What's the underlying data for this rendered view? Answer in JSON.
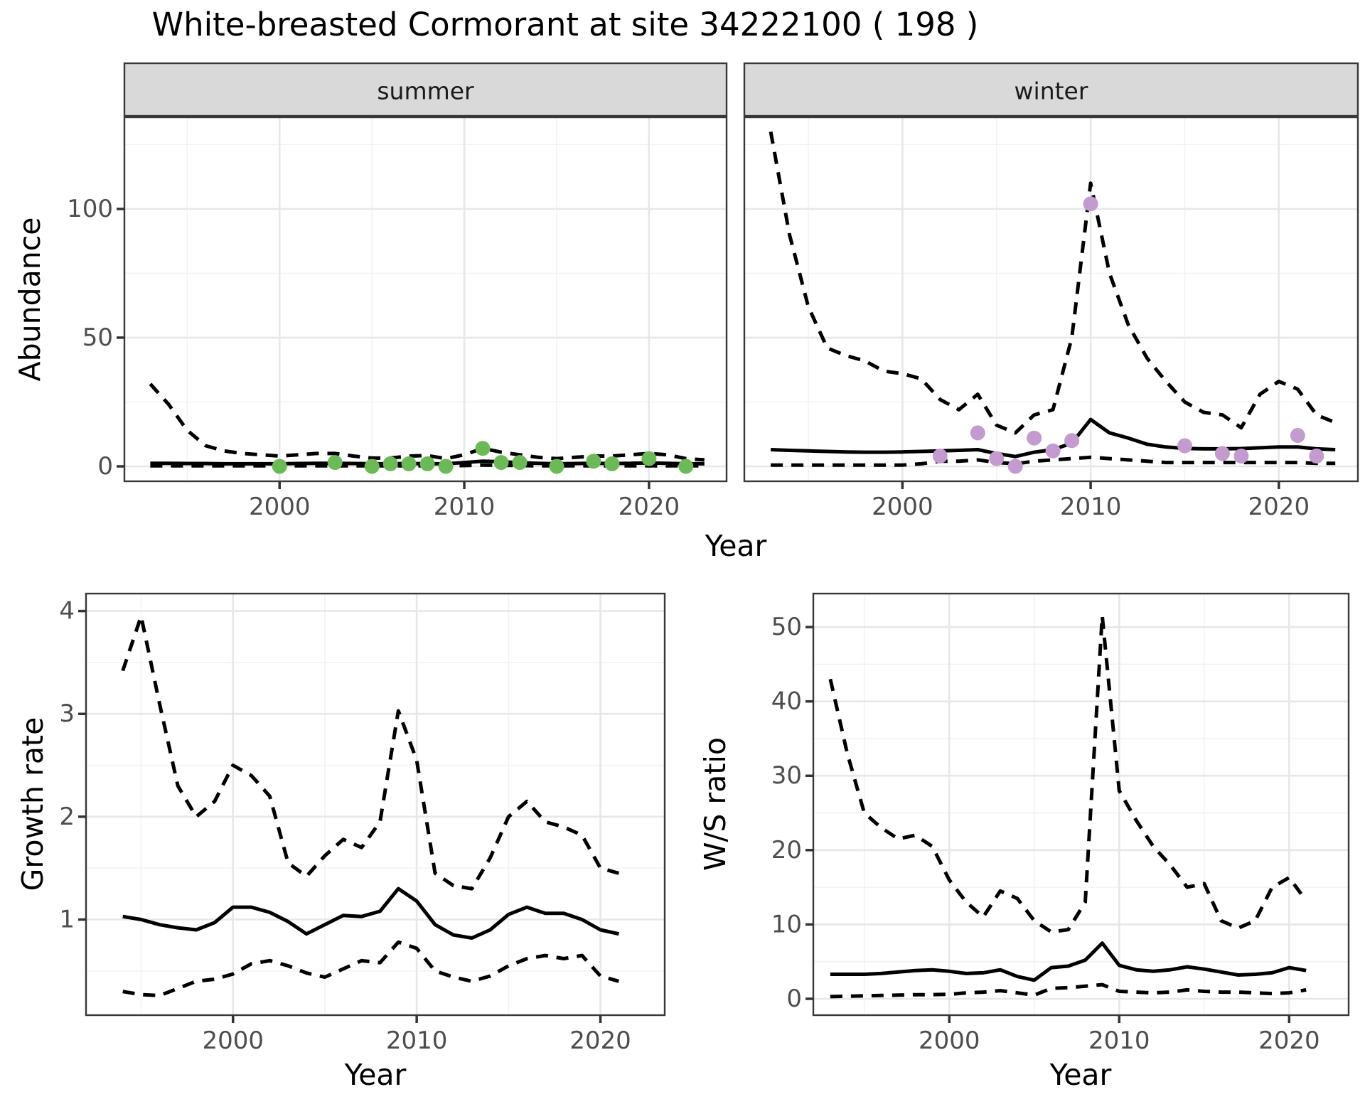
{
  "title": "White-breasted Cormorant at site 34222100 ( 198 )",
  "axis": {
    "abundance_label": "Abundance",
    "top_year_label": "Year",
    "growth_label": "Growth rate",
    "ws_label": "W/S ratio",
    "growth_year_label": "Year",
    "ws_year_label": "Year"
  },
  "colors": {
    "summer_points": "#6cba57",
    "winter_points": "#c49bcf",
    "line": "#000000",
    "grid_major": "#e7e7e7",
    "grid_minor": "#f2f2f2",
    "strip_bg": "#d9d9d9",
    "panel_border": "#383838",
    "tick_mark": "#333333",
    "tick_label": "#4d4d4d",
    "panel_bg": "#ffffff"
  },
  "chart_data": [
    {
      "id": "summer-abundance",
      "type": "line",
      "facet": "summer",
      "ylabel": "Abundance",
      "xlim": [
        1991.6,
        2024.2
      ],
      "ylim": [
        -5.8,
        135.6
      ],
      "x_major": [
        2000,
        2010,
        2020
      ],
      "x_major_labels": [
        "2000",
        "2010",
        "2020"
      ],
      "x_minor": [
        1995,
        2005,
        2015
      ],
      "y_major": [
        0,
        50,
        100
      ],
      "y_major_labels": [
        "0",
        "50",
        "100"
      ],
      "y_minor": [
        25,
        75,
        125
      ],
      "show_y_labels": true,
      "series": [
        {
          "name": "upper-ci",
          "style": "dashed",
          "x": [
            1993,
            1994,
            1995,
            1996,
            1997,
            1998,
            1999,
            2000,
            2001,
            2002,
            2003,
            2004,
            2005,
            2006,
            2007,
            2008,
            2009,
            2010,
            2011,
            2012,
            2013,
            2014,
            2015,
            2016,
            2017,
            2018,
            2019,
            2020,
            2021,
            2022,
            2023
          ],
          "y": [
            32,
            24,
            14,
            8,
            6,
            5,
            4.5,
            4,
            4.5,
            5,
            5,
            4,
            3.2,
            3.2,
            4,
            4.2,
            3,
            4.5,
            7,
            5.5,
            4.5,
            3.5,
            3,
            3.5,
            4,
            4,
            4.5,
            5,
            4.5,
            3,
            2.5
          ]
        },
        {
          "name": "median",
          "style": "solid",
          "x": [
            1993,
            1994,
            1995,
            1996,
            1997,
            1998,
            1999,
            2000,
            2001,
            2002,
            2003,
            2004,
            2005,
            2006,
            2007,
            2008,
            2009,
            2010,
            2011,
            2012,
            2013,
            2014,
            2015,
            2016,
            2017,
            2018,
            2019,
            2020,
            2021,
            2022,
            2023
          ],
          "y": [
            1.2,
            1.2,
            1.1,
            1.1,
            1,
            1,
            1,
            1,
            1.1,
            1.2,
            1.2,
            1.1,
            1,
            1,
            1.1,
            1,
            1,
            1.5,
            2,
            1.8,
            1.4,
            1.2,
            1,
            1.1,
            1.2,
            1.1,
            1.2,
            1.3,
            1.2,
            1,
            1
          ]
        },
        {
          "name": "lower-ci",
          "style": "dashed",
          "x": [
            1993,
            1994,
            1995,
            1996,
            1997,
            1998,
            1999,
            2000,
            2001,
            2002,
            2003,
            2004,
            2005,
            2006,
            2007,
            2008,
            2009,
            2010,
            2011,
            2012,
            2013,
            2014,
            2015,
            2016,
            2017,
            2018,
            2019,
            2020,
            2021,
            2022,
            2023
          ],
          "y": [
            0.2,
            0.2,
            0.2,
            0.2,
            0.2,
            0.2,
            0.2,
            0.2,
            0.2,
            0.2,
            0.2,
            0.2,
            0.2,
            0.2,
            0.2,
            0.2,
            0.2,
            0.3,
            0.5,
            0.4,
            0.3,
            0.2,
            0.2,
            0.2,
            0.2,
            0.2,
            0.2,
            0.2,
            0.2,
            0.2,
            0.2
          ]
        }
      ],
      "points": {
        "name": "summer-observations",
        "color_key": "summer_points",
        "x": [
          2000,
          2003,
          2005,
          2006,
          2007,
          2008,
          2009,
          2011,
          2012,
          2013,
          2015,
          2017,
          2018,
          2020,
          2022
        ],
        "y": [
          0,
          1.5,
          0,
          1,
          1,
          1,
          0,
          7,
          1.5,
          1.5,
          0,
          2,
          1,
          3,
          0
        ]
      }
    },
    {
      "id": "winter-abundance",
      "type": "line",
      "facet": "winter",
      "ylabel": "Abundance",
      "xlim": [
        1991.6,
        2024.2
      ],
      "ylim": [
        -5.8,
        135.6
      ],
      "x_major": [
        2000,
        2010,
        2020
      ],
      "x_major_labels": [
        "2000",
        "2010",
        "2020"
      ],
      "x_minor": [
        1995,
        2005,
        2015
      ],
      "y_major": [
        0,
        50,
        100
      ],
      "y_major_labels": [
        "0",
        "50",
        "100"
      ],
      "y_minor": [
        25,
        75,
        125
      ],
      "show_y_labels": false,
      "series": [
        {
          "name": "upper-ci",
          "style": "dashed",
          "x": [
            1993,
            1994,
            1995,
            1996,
            1997,
            1998,
            1999,
            2000,
            2001,
            2002,
            2003,
            2004,
            2005,
            2006,
            2007,
            2008,
            2009,
            2010,
            2011,
            2012,
            2013,
            2014,
            2015,
            2016,
            2017,
            2018,
            2019,
            2020,
            2021,
            2022,
            2023
          ],
          "y": [
            130,
            90,
            62,
            46,
            43,
            41,
            37,
            36,
            34,
            26,
            22,
            28,
            16,
            13,
            20,
            22,
            50,
            110,
            75,
            55,
            42,
            33,
            25,
            21,
            20,
            15,
            28,
            33,
            30,
            20,
            17
          ]
        },
        {
          "name": "median",
          "style": "solid",
          "x": [
            1993,
            1994,
            1995,
            1996,
            1997,
            1998,
            1999,
            2000,
            2001,
            2002,
            2003,
            2004,
            2005,
            2006,
            2007,
            2008,
            2009,
            2010,
            2011,
            2012,
            2013,
            2014,
            2015,
            2016,
            2017,
            2018,
            2019,
            2020,
            2021,
            2022,
            2023
          ],
          "y": [
            6.5,
            6.2,
            6,
            5.8,
            5.6,
            5.5,
            5.5,
            5.6,
            5.8,
            6,
            6.2,
            6.5,
            5,
            3.8,
            5.5,
            6.5,
            9,
            18.2,
            13,
            11,
            8.6,
            7.5,
            7,
            6.8,
            6.8,
            6.9,
            7.2,
            7.5,
            7.5,
            6.8,
            6.5
          ]
        },
        {
          "name": "lower-ci",
          "style": "dashed",
          "x": [
            1993,
            1994,
            1995,
            1996,
            1997,
            1998,
            1999,
            2000,
            2001,
            2002,
            2003,
            2004,
            2005,
            2006,
            2007,
            2008,
            2009,
            2010,
            2011,
            2012,
            2013,
            2014,
            2015,
            2016,
            2017,
            2018,
            2019,
            2020,
            2021,
            2022,
            2023
          ],
          "y": [
            0.5,
            0.5,
            0.5,
            0.5,
            0.5,
            0.5,
            0.5,
            0.5,
            1,
            2,
            2,
            2.5,
            1.5,
            1,
            2,
            2.5,
            3,
            3.5,
            3,
            2.5,
            2,
            1.5,
            1.5,
            1.5,
            1.5,
            1.5,
            1.5,
            1.5,
            1.5,
            1.2,
            1.2
          ]
        }
      ],
      "points": {
        "name": "winter-observations",
        "color_key": "winter_points",
        "x": [
          2002,
          2004,
          2005,
          2006,
          2007,
          2008,
          2009,
          2010,
          2015,
          2017,
          2018,
          2021,
          2022
        ],
        "y": [
          4,
          13,
          3,
          0,
          11,
          6,
          10,
          102,
          8,
          5,
          4,
          12,
          4
        ]
      }
    },
    {
      "id": "growth-rate",
      "type": "line",
      "facet": null,
      "ylabel": "Growth rate",
      "xlabel": "Year",
      "xlim": [
        1992,
        2023.5
      ],
      "ylim": [
        0.07,
        4.17
      ],
      "x_major": [
        2000,
        2010,
        2020
      ],
      "x_major_labels": [
        "2000",
        "2010",
        "2020"
      ],
      "x_minor": [
        1995,
        2005,
        2015
      ],
      "y_major": [
        1,
        2,
        3,
        4
      ],
      "y_major_labels": [
        "1",
        "2",
        "3",
        "4"
      ],
      "y_minor": [
        0.5,
        1.5,
        2.5,
        3.5
      ],
      "show_y_labels": true,
      "series": [
        {
          "name": "upper-ci",
          "style": "dashed",
          "x": [
            1994,
            1995,
            1996,
            1997,
            1998,
            1999,
            2000,
            2001,
            2002,
            2003,
            2004,
            2005,
            2006,
            2007,
            2008,
            2009,
            2010,
            2011,
            2012,
            2013,
            2014,
            2015,
            2016,
            2017,
            2018,
            2019,
            2020,
            2021
          ],
          "y": [
            3.42,
            3.95,
            3.1,
            2.3,
            2.0,
            2.15,
            2.5,
            2.4,
            2.2,
            1.55,
            1.42,
            1.62,
            1.78,
            1.7,
            1.95,
            3.03,
            2.55,
            1.45,
            1.33,
            1.3,
            1.6,
            2.0,
            2.15,
            1.95,
            1.9,
            1.82,
            1.5,
            1.45
          ]
        },
        {
          "name": "median",
          "style": "solid",
          "x": [
            1994,
            1995,
            1996,
            1997,
            1998,
            1999,
            2000,
            2001,
            2002,
            2003,
            2004,
            2005,
            2006,
            2007,
            2008,
            2009,
            2010,
            2011,
            2012,
            2013,
            2014,
            2015,
            2016,
            2017,
            2018,
            2019,
            2020,
            2021
          ],
          "y": [
            1.03,
            1.0,
            0.95,
            0.92,
            0.9,
            0.97,
            1.12,
            1.12,
            1.07,
            0.98,
            0.86,
            0.95,
            1.04,
            1.03,
            1.08,
            1.3,
            1.18,
            0.95,
            0.85,
            0.82,
            0.9,
            1.05,
            1.12,
            1.06,
            1.06,
            1.0,
            0.9,
            0.86
          ]
        },
        {
          "name": "lower-ci",
          "style": "dashed",
          "x": [
            1994,
            1995,
            1996,
            1997,
            1998,
            1999,
            2000,
            2001,
            2002,
            2003,
            2004,
            2005,
            2006,
            2007,
            2008,
            2009,
            2010,
            2011,
            2012,
            2013,
            2014,
            2015,
            2016,
            2017,
            2018,
            2019,
            2020,
            2021
          ],
          "y": [
            0.3,
            0.27,
            0.26,
            0.33,
            0.4,
            0.42,
            0.47,
            0.57,
            0.6,
            0.55,
            0.48,
            0.44,
            0.52,
            0.6,
            0.58,
            0.78,
            0.72,
            0.5,
            0.44,
            0.4,
            0.45,
            0.55,
            0.62,
            0.65,
            0.62,
            0.65,
            0.45,
            0.4
          ]
        }
      ],
      "points": null
    },
    {
      "id": "ws-ratio",
      "type": "line",
      "facet": null,
      "ylabel": "W/S ratio",
      "xlabel": "Year",
      "xlim": [
        1992,
        2023.5
      ],
      "ylim": [
        -2.2,
        54.5
      ],
      "x_major": [
        2000,
        2010,
        2020
      ],
      "x_major_labels": [
        "2000",
        "2010",
        "2020"
      ],
      "x_minor": [
        1995,
        2005,
        2015
      ],
      "y_major": [
        0,
        10,
        20,
        30,
        40,
        50
      ],
      "y_major_labels": [
        "0",
        "10",
        "20",
        "30",
        "40",
        "50"
      ],
      "y_minor": [
        5,
        15,
        25,
        35,
        45
      ],
      "show_y_labels": true,
      "series": [
        {
          "name": "upper-ci",
          "style": "dashed",
          "x": [
            1993,
            1994,
            1995,
            1996,
            1997,
            1998,
            1999,
            2000,
            2001,
            2002,
            2003,
            2004,
            2005,
            2006,
            2007,
            2008,
            2009,
            2010,
            2011,
            2012,
            2013,
            2014,
            2015,
            2016,
            2017,
            2018,
            2019,
            2020,
            2021
          ],
          "y": [
            43,
            33,
            25,
            23,
            21.5,
            22,
            20.5,
            16,
            13,
            11,
            14.5,
            13.5,
            10.5,
            9,
            9.3,
            13,
            51.5,
            28,
            24,
            20.5,
            18,
            15,
            15.5,
            10.5,
            9.5,
            10.5,
            15,
            16.3,
            13.2
          ]
        },
        {
          "name": "median",
          "style": "solid",
          "x": [
            1993,
            1994,
            1995,
            1996,
            1997,
            1998,
            1999,
            2000,
            2001,
            2002,
            2003,
            2004,
            2005,
            2006,
            2007,
            2008,
            2009,
            2010,
            2011,
            2012,
            2013,
            2014,
            2015,
            2016,
            2017,
            2018,
            2019,
            2020,
            2021
          ],
          "y": [
            3.3,
            3.3,
            3.3,
            3.4,
            3.6,
            3.8,
            3.9,
            3.7,
            3.4,
            3.5,
            3.9,
            3.0,
            2.5,
            4.2,
            4.4,
            5.2,
            7.5,
            4.5,
            3.9,
            3.7,
            3.9,
            4.3,
            4.0,
            3.6,
            3.2,
            3.3,
            3.5,
            4.2,
            3.8
          ]
        },
        {
          "name": "lower-ci",
          "style": "dashed",
          "x": [
            1993,
            1994,
            1995,
            1996,
            1997,
            1998,
            1999,
            2000,
            2001,
            2002,
            2003,
            2004,
            2005,
            2006,
            2007,
            2008,
            2009,
            2010,
            2011,
            2012,
            2013,
            2014,
            2015,
            2016,
            2017,
            2018,
            2019,
            2020,
            2021
          ],
          "y": [
            0.3,
            0.35,
            0.4,
            0.45,
            0.5,
            0.55,
            0.55,
            0.6,
            0.8,
            0.9,
            1.1,
            0.8,
            0.5,
            1.4,
            1.5,
            1.7,
            1.9,
            1.0,
            0.9,
            0.8,
            0.9,
            1.2,
            1.0,
            0.9,
            0.9,
            0.8,
            0.7,
            0.8,
            1.2
          ]
        }
      ],
      "points": null
    }
  ]
}
